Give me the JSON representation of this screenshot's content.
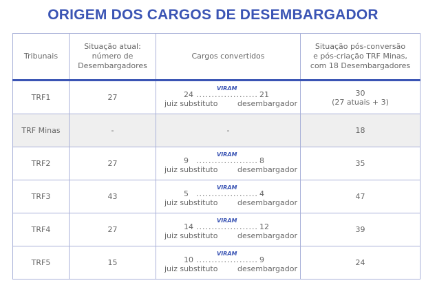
{
  "title": "ORIGEM DOS CARGOS DE DESEMBARGADOR",
  "headers": {
    "tribunais": "Tribunais",
    "situacao_atual": [
      "Situação atual:",
      "número de",
      "Desembargadores"
    ],
    "cargos_convertidos": "Cargos convertidos",
    "situacao_pos": [
      "Situação pós-conversão",
      "e pós-criação TRF Minas,",
      "com 18 Desembargadores"
    ]
  },
  "conversion_labels": {
    "verb": "VIRAM",
    "from": "juiz substituto",
    "to": "desembargador",
    "dots": "......................"
  },
  "rows": [
    {
      "tribunal": "TRF1",
      "atual": "27",
      "from": "24",
      "to": "21",
      "pos": [
        "30",
        "(27 atuais + 3)"
      ]
    },
    {
      "tribunal": "TRF Minas",
      "atual": "-",
      "conv_text": "-",
      "pos": [
        "18"
      ]
    },
    {
      "tribunal": "TRF2",
      "atual": "27",
      "from": "9",
      "to": "8",
      "pos": [
        "35"
      ]
    },
    {
      "tribunal": "TRF3",
      "atual": "43",
      "from": "5",
      "to": "4",
      "pos": [
        "47"
      ]
    },
    {
      "tribunal": "TRF4",
      "atual": "27",
      "from": "14",
      "to": "12",
      "pos": [
        "39"
      ]
    },
    {
      "tribunal": "TRF5",
      "atual": "15",
      "from": "10",
      "to": "9",
      "pos": [
        "24"
      ]
    }
  ]
}
